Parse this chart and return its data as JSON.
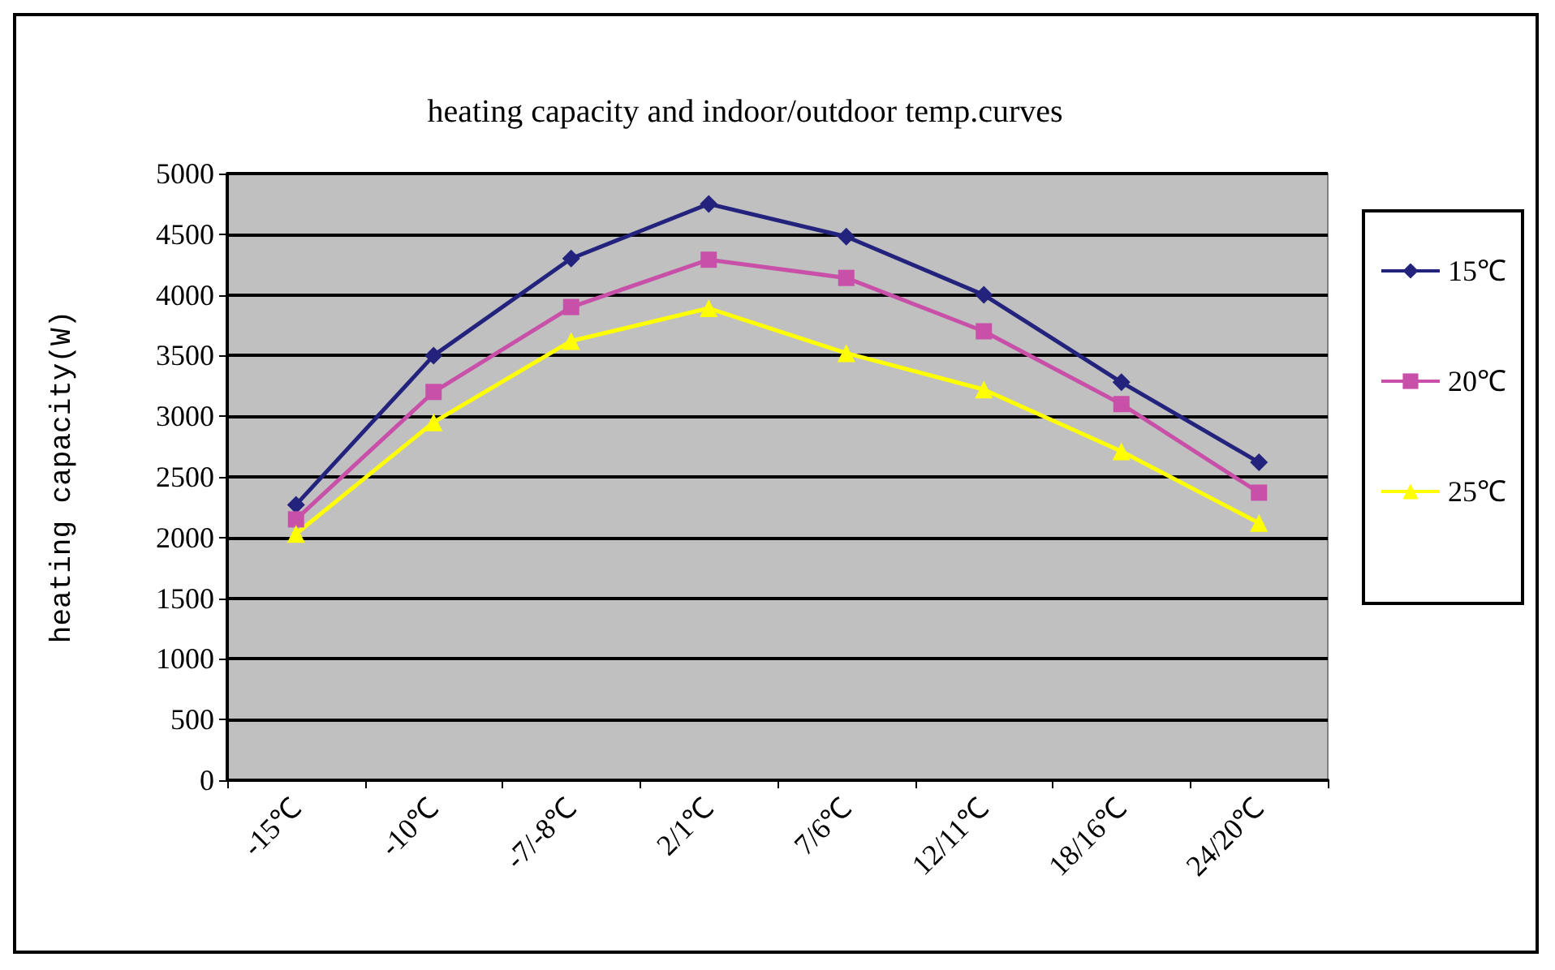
{
  "chart_data": {
    "type": "line",
    "title": "heating capacity and indoor/outdoor temp.curves",
    "ylabel": "heating capacity(W)",
    "categories": [
      "-15℃",
      "-10℃",
      "-7/-8℃",
      "2/1℃",
      "7/6℃",
      "12/11℃",
      "18/16℃",
      "24/20℃"
    ],
    "series": [
      {
        "name": "15℃",
        "color": "#23237e",
        "marker": "diamond",
        "values": [
          2270,
          3500,
          4300,
          4750,
          4480,
          4000,
          3280,
          2620
        ]
      },
      {
        "name": "20℃",
        "color": "#c850a8",
        "marker": "square",
        "values": [
          2150,
          3200,
          3900,
          4290,
          4140,
          3700,
          3100,
          2370
        ]
      },
      {
        "name": "25℃",
        "color": "#ffff00",
        "marker": "triangle",
        "values": [
          2030,
          2950,
          3620,
          3890,
          3520,
          3220,
          2710,
          2120
        ]
      }
    ],
    "ylim": [
      0,
      5000
    ],
    "yticks": [
      0,
      500,
      1000,
      1500,
      2000,
      2500,
      3000,
      3500,
      4000,
      4500,
      5000
    ],
    "grid": "y",
    "legend": "right"
  }
}
